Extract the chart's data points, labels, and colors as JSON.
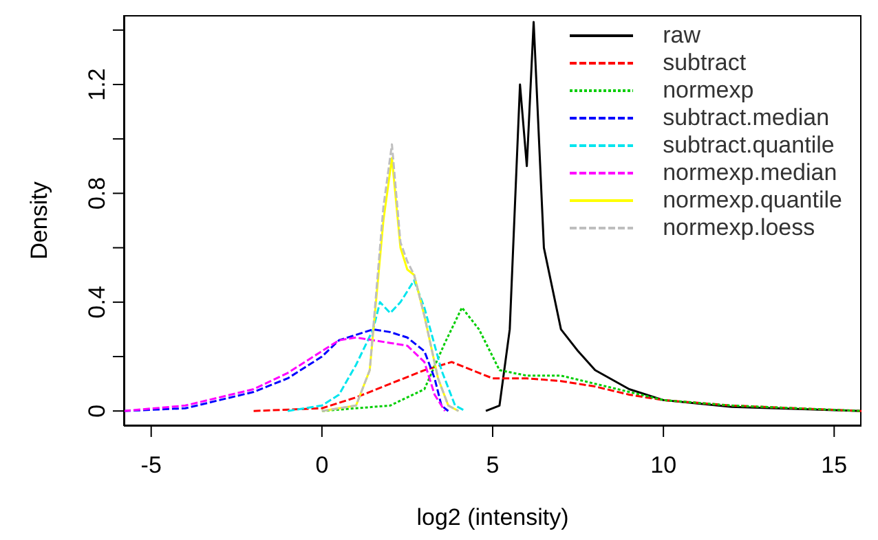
{
  "chart_data": {
    "type": "line",
    "xlabel": "log2 (intensity)",
    "ylabel": "Density",
    "xlim": [
      -5.8,
      15.8
    ],
    "ylim": [
      -0.055,
      1.455
    ],
    "xticks": [
      -5,
      0,
      5,
      10,
      15
    ],
    "yticks": [
      0,
      {
        "value": 0.2,
        "label": null
      },
      0.4,
      {
        "value": 0.6,
        "label": null
      },
      0.8,
      {
        "value": 1.0,
        "label": null
      },
      1.2,
      {
        "value": 1.4,
        "label": null
      }
    ],
    "legend": "top right",
    "marker": "none",
    "series": [
      {
        "name": "raw",
        "color": "#000000",
        "line_style": "solid",
        "x": [
          4.8,
          5.2,
          5.5,
          5.8,
          6.0,
          6.2,
          6.5,
          7,
          7.5,
          8,
          9,
          10,
          12,
          15.8
        ],
        "values": [
          0,
          0.02,
          0.3,
          1.2,
          0.9,
          1.43,
          0.6,
          0.3,
          0.22,
          0.15,
          0.08,
          0.04,
          0.015,
          0
        ]
      },
      {
        "name": "subtract",
        "color": "#ff0000",
        "line_style": "dashed",
        "x": [
          -2,
          0,
          1,
          2,
          3,
          3.8,
          4.2,
          5,
          6,
          7,
          8,
          9,
          10,
          12,
          15.8
        ],
        "values": [
          0,
          0.01,
          0.05,
          0.1,
          0.15,
          0.18,
          0.16,
          0.12,
          0.12,
          0.11,
          0.09,
          0.06,
          0.04,
          0.02,
          0
        ]
      },
      {
        "name": "normexp",
        "color": "#00cd00",
        "line_style": "dotted",
        "x": [
          0,
          2,
          3,
          3.6,
          4.1,
          4.6,
          5.2,
          6,
          7,
          8,
          9,
          10,
          12,
          15.8
        ],
        "values": [
          0,
          0.02,
          0.08,
          0.25,
          0.38,
          0.3,
          0.15,
          0.13,
          0.13,
          0.1,
          0.07,
          0.04,
          0.02,
          0
        ]
      },
      {
        "name": "subtract.median",
        "color": "#0000ff",
        "line_style": "dashed",
        "x": [
          -5.8,
          -4,
          -3,
          -2,
          -1,
          0,
          0.5,
          1,
          1.5,
          2,
          2.5,
          3,
          3.3,
          3.5,
          3.7
        ],
        "values": [
          0,
          0.01,
          0.04,
          0.07,
          0.12,
          0.2,
          0.26,
          0.28,
          0.3,
          0.29,
          0.27,
          0.22,
          0.12,
          0.02,
          0
        ]
      },
      {
        "name": "subtract.quantile",
        "color": "#00e5ee",
        "line_style": "dashed",
        "x": [
          -1,
          0,
          0.5,
          1,
          1.5,
          1.7,
          2,
          2.3,
          2.7,
          3,
          3.5,
          3.9,
          4.2
        ],
        "values": [
          0,
          0.02,
          0.06,
          0.17,
          0.3,
          0.4,
          0.36,
          0.4,
          0.48,
          0.38,
          0.15,
          0.02,
          0
        ]
      },
      {
        "name": "normexp.median",
        "color": "#ff00ff",
        "line_style": "dashed",
        "x": [
          -5.8,
          -4,
          -3,
          -2,
          -1,
          0,
          0.5,
          1,
          1.5,
          2,
          2.5,
          3,
          3.3,
          3.6
        ],
        "values": [
          0,
          0.02,
          0.05,
          0.08,
          0.14,
          0.22,
          0.26,
          0.27,
          0.26,
          0.25,
          0.24,
          0.18,
          0.06,
          0
        ]
      },
      {
        "name": "normexp.quantile",
        "color": "#ffff00",
        "line_style": "solid",
        "x": [
          0,
          1,
          1.4,
          1.8,
          2.05,
          2.3,
          2.5,
          2.7,
          3,
          3.4,
          3.7,
          4
        ],
        "values": [
          0,
          0.02,
          0.15,
          0.7,
          0.93,
          0.6,
          0.52,
          0.5,
          0.35,
          0.12,
          0.02,
          0
        ]
      },
      {
        "name": "normexp.loess",
        "color": "#bebebe",
        "line_style": "dashed",
        "x": [
          0,
          1,
          1.4,
          1.8,
          2.05,
          2.3,
          2.5,
          2.7,
          3,
          3.4,
          3.7,
          4
        ],
        "values": [
          0,
          0.02,
          0.15,
          0.75,
          0.98,
          0.62,
          0.55,
          0.5,
          0.35,
          0.12,
          0.02,
          0
        ]
      }
    ]
  }
}
